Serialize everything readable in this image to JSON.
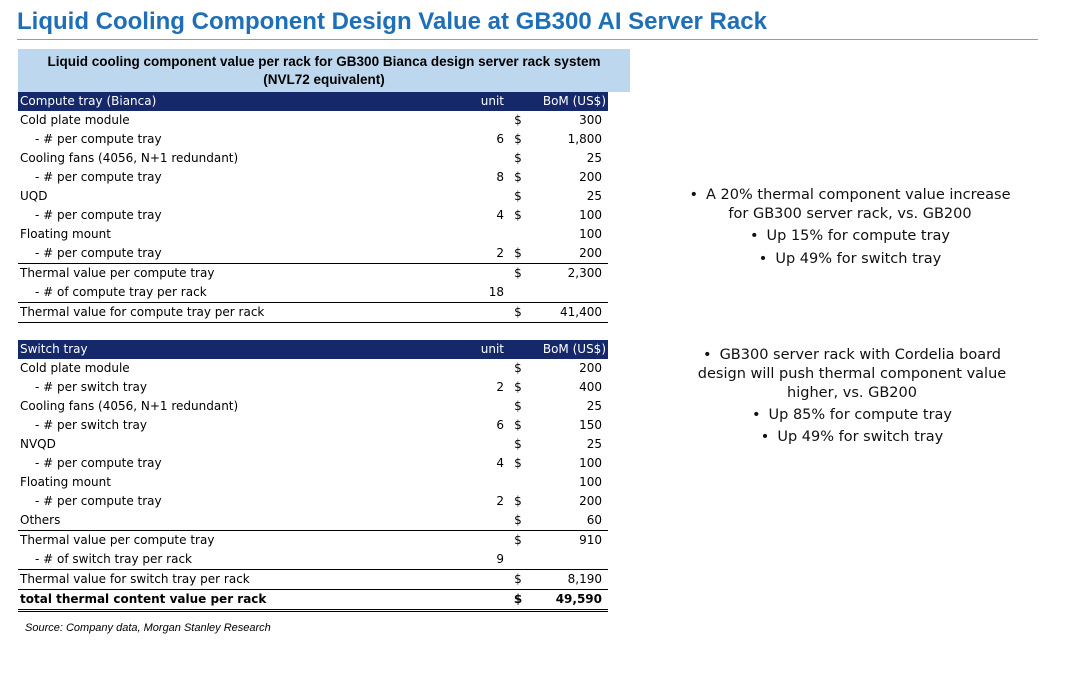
{
  "title": "Liquid Cooling Component Design Value at GB300 AI Server Rack",
  "table_title_line1": "Liquid cooling component value per rack for GB300 Bianca design server rack system",
  "table_title_line2": "(NVL72 equivalent)",
  "compute": {
    "header": {
      "label": "Compute tray (Bianca)",
      "unit": "unit",
      "bom": "BoM (US$)"
    },
    "rows": [
      {
        "label": "Cold plate module",
        "unit": "",
        "dollar": "$",
        "value": "300"
      },
      {
        "label": "- # per compute tray",
        "unit": "6",
        "dollar": "$",
        "value": "1,800"
      },
      {
        "label": "Cooling fans (4056, N+1 redundant)",
        "unit": "",
        "dollar": "$",
        "value": "25"
      },
      {
        "label": "- # per compute tray",
        "unit": "8",
        "dollar": "$",
        "value": "200"
      },
      {
        "label": "UQD",
        "unit": "",
        "dollar": "$",
        "value": "25"
      },
      {
        "label": "- # per compute tray",
        "unit": "4",
        "dollar": "$",
        "value": "100"
      },
      {
        "label": "Floating mount",
        "unit": "",
        "dollar": "",
        "value": "100"
      },
      {
        "label": "- # per compute tray",
        "unit": "2",
        "dollar": "$",
        "value": "200"
      },
      {
        "label": "Thermal value per compute tray",
        "unit": "",
        "dollar": "$",
        "value": "2,300"
      },
      {
        "label": "- # of compute tray per rack",
        "unit": "18",
        "dollar": "",
        "value": ""
      },
      {
        "label": "Thermal value for compute tray  per rack",
        "unit": "",
        "dollar": "$",
        "value": "41,400"
      }
    ]
  },
  "switch": {
    "header": {
      "label": "Switch tray",
      "unit": "unit",
      "bom": "BoM (US$)"
    },
    "rows": [
      {
        "label": "Cold plate module",
        "unit": "",
        "dollar": "$",
        "value": "200"
      },
      {
        "label": "- # per switch tray",
        "unit": "2",
        "dollar": "$",
        "value": "400"
      },
      {
        "label": "Cooling fans (4056, N+1 redundant)",
        "unit": "",
        "dollar": "$",
        "value": "25"
      },
      {
        "label": "- # per switch tray",
        "unit": "6",
        "dollar": "$",
        "value": "150"
      },
      {
        "label": "NVQD",
        "unit": "",
        "dollar": "$",
        "value": "25"
      },
      {
        "label": "- # per compute tray",
        "unit": "4",
        "dollar": "$",
        "value": "100"
      },
      {
        "label": "Floating mount",
        "unit": "",
        "dollar": "",
        "value": "100"
      },
      {
        "label": "- # per compute tray",
        "unit": "2",
        "dollar": "$",
        "value": "200"
      },
      {
        "label": "Others",
        "unit": "",
        "dollar": "$",
        "value": "60"
      },
      {
        "label": "Thermal value per compute tray",
        "unit": "",
        "dollar": "$",
        "value": "910"
      },
      {
        "label": "- # of switch tray per rack",
        "unit": "9",
        "dollar": "",
        "value": ""
      },
      {
        "label": "Thermal value for switch tray per rack",
        "unit": "",
        "dollar": "$",
        "value": "8,190"
      },
      {
        "label": "total thermal content value per rack",
        "unit": "",
        "dollar": "$",
        "value": "49,590"
      }
    ]
  },
  "source": "Source: Company data, Morgan Stanley Research",
  "notes1": {
    "main_l1": "A 20% thermal component value increase",
    "main_l2": "for GB300 server rack, vs. GB200",
    "sub1": "Up 15% for compute tray",
    "sub2": "Up 49% for switch tray"
  },
  "notes2": {
    "main_l1": "GB300 server rack with Cordelia board",
    "main_l2": "design will push thermal component value",
    "main_l3": "higher, vs. GB200",
    "sub1": "Up 85% for compute tray",
    "sub2": "Up 49% for switch tray"
  },
  "bullet_char": "•"
}
